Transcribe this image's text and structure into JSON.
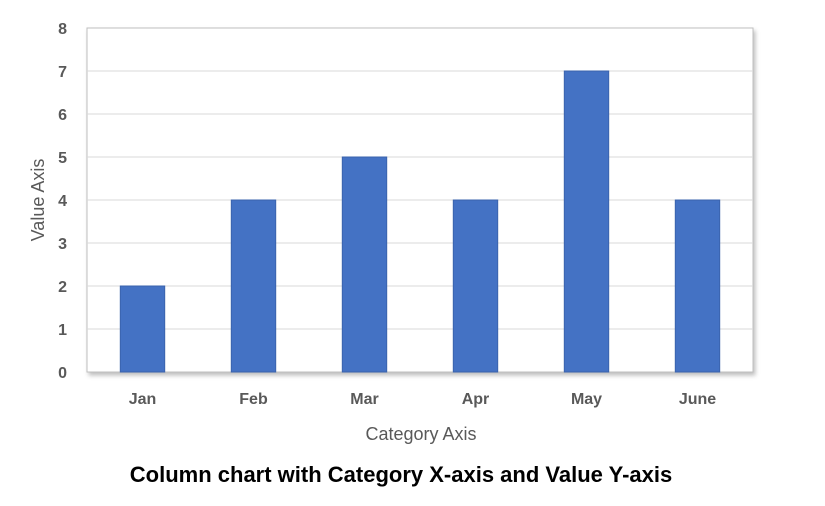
{
  "chart_data": {
    "type": "bar",
    "title": "Column chart with Category X-axis and Value Y-axis",
    "xlabel": "Category Axis",
    "ylabel": "Value Axis",
    "categories": [
      "Jan",
      "Feb",
      "Mar",
      "Apr",
      "May",
      "June"
    ],
    "values": [
      2,
      4,
      5,
      4,
      7,
      4
    ],
    "ylim": [
      0,
      8
    ],
    "yticks": [
      "0",
      "1",
      "2",
      "3",
      "4",
      "5",
      "6",
      "7",
      "8"
    ],
    "grid": true,
    "legend": "none",
    "colors": {
      "bar": "#4472C4",
      "bar_edge": "#3A63AD",
      "grid": "#D9D9D9",
      "plot_border": "#BFBFBF",
      "tick_text": "#595959",
      "title_text": "#000000"
    }
  }
}
